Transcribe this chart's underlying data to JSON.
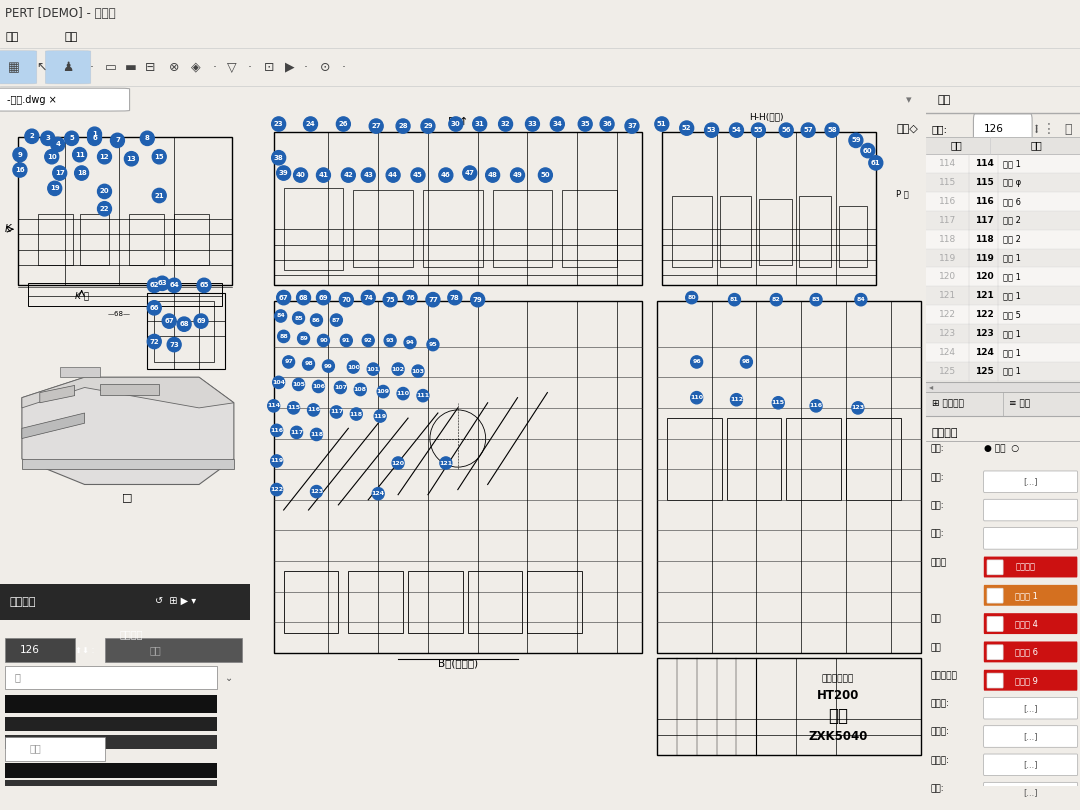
{
  "title": "PERT [DEMO] - 未保存",
  "tab_label": "-床身.dwg",
  "bg_color": "#f0ede8",
  "toolbar_bg": "#f0ede8",
  "drawing_bg": "#ffffff",
  "right_bg": "#f0ede8",
  "title_bar_bg": "#dbd8d0",
  "menu_bar_bg": "#f0ede8",
  "right_panel_title": "特性",
  "start_label": "开始:",
  "start_value": "126",
  "table_headers": [
    "序号",
    "标题"
  ],
  "table_rows_left": [
    "114",
    "115",
    "116",
    "117",
    "118",
    "119",
    "120",
    "121",
    "122",
    "123",
    "124",
    "125"
  ],
  "table_rows_mid": [
    "114",
    "115",
    "116",
    "117",
    "118",
    "119",
    "120",
    "121",
    "122",
    "123",
    "124",
    "125"
  ],
  "table_rows_right": [
    "长度 1",
    "直径 φ",
    "长度 6",
    "长度 2",
    "长度 2",
    "长度 1",
    "长度 1",
    "长度 1",
    "长度 5",
    "长度 1",
    "长度 1",
    "长度 1"
  ],
  "bottom_tabs": [
    "项目拓展",
    "特性"
  ],
  "prop_section": "特性细节",
  "prop_labels": [
    "种类:",
    "数値:",
    "级别:",
    "目录:",
    "注释标",
    "巡检",
    "全检",
    "首位件抽检",
    "名义値:",
    "上公差:",
    "下公差:",
    "匹配:"
  ],
  "btn_labels": [
    "新注释标",
    "注释标 1",
    "新选项 4",
    "新选项 6",
    "新选项 9"
  ],
  "btn_colors": [
    "#cc1111",
    "#d47020",
    "#cc1111",
    "#cc1111",
    "#cc1111"
  ],
  "bubble_color": "#2060b0",
  "bottom_dark_bg": "#1c1c1c",
  "bottom_dark_text": "#ffffff",
  "menu_items": [
    "视图",
    "帮助"
  ],
  "other_text": "其余◇",
  "hh_label": "H-H(截件)",
  "b_label": "B↑",
  "b_bottom_label": "B向(仅底面)",
  "k_label": "K向",
  "hq_label": "其予◇",
  "title_block_text1": "HT200",
  "title_block_text2": "床身",
  "title_block_text3": "ZXK5040",
  "title_block_company": "泰州中兴数控"
}
